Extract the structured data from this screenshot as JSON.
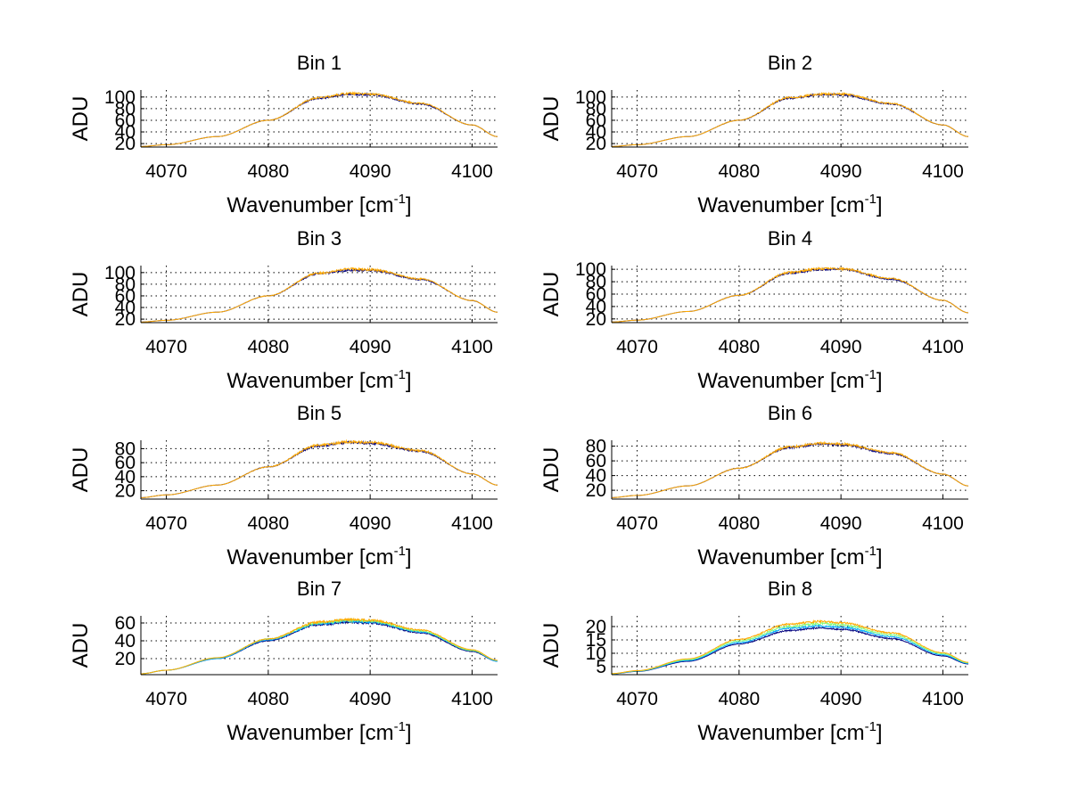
{
  "figure": {
    "background": "#ffffff"
  },
  "chart_data": [
    {
      "type": "line",
      "title": "Bin 1",
      "xlabel": "Wavenumber [cm",
      "xlabel_sup": "-1",
      "xlabel_close": "]",
      "ylabel": "ADU",
      "xlim": [
        4067.5,
        4102.5
      ],
      "ylim": [
        14,
        112
      ],
      "xticks": [
        4070,
        4080,
        4090,
        4100
      ],
      "yticks": [
        20,
        40,
        60,
        80,
        100
      ],
      "grid": true,
      "series": [
        {
          "color": "#00007f",
          "values": [
            [
              4067.5,
              15
            ],
            [
              4070,
              18
            ],
            [
              4075,
              32
            ],
            [
              4080,
              60
            ],
            [
              4085,
              98
            ],
            [
              4088,
              105
            ],
            [
              4090,
              104
            ],
            [
              4095,
              88
            ],
            [
              4100,
              52
            ],
            [
              4102.5,
              32
            ]
          ]
        },
        {
          "color": "#ffaa00",
          "values": [
            [
              4067.5,
              15
            ],
            [
              4070,
              18
            ],
            [
              4075,
              32
            ],
            [
              4080,
              60
            ],
            [
              4085,
              99
            ],
            [
              4088,
              106
            ],
            [
              4090,
              105
            ],
            [
              4095,
              89
            ],
            [
              4100,
              52
            ],
            [
              4102.5,
              32
            ]
          ]
        }
      ]
    },
    {
      "type": "line",
      "title": "Bin 2",
      "xlabel": "Wavenumber [cm",
      "xlabel_sup": "-1",
      "xlabel_close": "]",
      "ylabel": "ADU",
      "xlim": [
        4067.5,
        4102.5
      ],
      "ylim": [
        14,
        112
      ],
      "xticks": [
        4070,
        4080,
        4090,
        4100
      ],
      "yticks": [
        20,
        40,
        60,
        80,
        100
      ],
      "grid": true,
      "series": [
        {
          "color": "#00007f",
          "values": [
            [
              4067.5,
              15
            ],
            [
              4070,
              18
            ],
            [
              4075,
              32
            ],
            [
              4080,
              60
            ],
            [
              4085,
              98
            ],
            [
              4088,
              104
            ],
            [
              4090,
              104
            ],
            [
              4095,
              88
            ],
            [
              4100,
              52
            ],
            [
              4102.5,
              32
            ]
          ]
        },
        {
          "color": "#ffaa00",
          "values": [
            [
              4067.5,
              15
            ],
            [
              4070,
              18
            ],
            [
              4075,
              32
            ],
            [
              4080,
              60
            ],
            [
              4085,
              99
            ],
            [
              4088,
              105
            ],
            [
              4090,
              105
            ],
            [
              4095,
              89
            ],
            [
              4100,
              52
            ],
            [
              4102.5,
              32
            ]
          ]
        }
      ]
    },
    {
      "type": "line",
      "title": "Bin 3",
      "xlabel": "Wavenumber [cm",
      "xlabel_sup": "-1",
      "xlabel_close": "]",
      "ylabel": "ADU",
      "xlim": [
        4067.5,
        4102.5
      ],
      "ylim": [
        14,
        112
      ],
      "xticks": [
        4070,
        4080,
        4090,
        4100
      ],
      "yticks": [
        20,
        40,
        60,
        80,
        100
      ],
      "grid": true,
      "series": [
        {
          "color": "#00007f",
          "values": [
            [
              4067.5,
              15
            ],
            [
              4070,
              18
            ],
            [
              4075,
              32
            ],
            [
              4080,
              60
            ],
            [
              4085,
              98
            ],
            [
              4088,
              104
            ],
            [
              4090,
              104
            ],
            [
              4095,
              88
            ],
            [
              4100,
              52
            ],
            [
              4102.5,
              32
            ]
          ]
        },
        {
          "color": "#ffaa00",
          "values": [
            [
              4067.5,
              15
            ],
            [
              4070,
              18
            ],
            [
              4075,
              32
            ],
            [
              4080,
              60
            ],
            [
              4085,
              99
            ],
            [
              4088,
              106
            ],
            [
              4090,
              105
            ],
            [
              4095,
              89
            ],
            [
              4100,
              52
            ],
            [
              4102.5,
              32
            ]
          ]
        }
      ]
    },
    {
      "type": "line",
      "title": "Bin 4",
      "xlabel": "Wavenumber [cm",
      "xlabel_sup": "-1",
      "xlabel_close": "]",
      "ylabel": "ADU",
      "xlim": [
        4067.5,
        4102.5
      ],
      "ylim": [
        14,
        106
      ],
      "xticks": [
        4070,
        4080,
        4090,
        4100
      ],
      "yticks": [
        20,
        40,
        60,
        80,
        100
      ],
      "grid": true,
      "series": [
        {
          "color": "#00007f",
          "values": [
            [
              4067.5,
              15
            ],
            [
              4070,
              18
            ],
            [
              4075,
              32
            ],
            [
              4080,
              58
            ],
            [
              4085,
              94
            ],
            [
              4088,
              100
            ],
            [
              4090,
              100
            ],
            [
              4095,
              84
            ],
            [
              4100,
              50
            ],
            [
              4102.5,
              30
            ]
          ]
        },
        {
          "color": "#ffaa00",
          "values": [
            [
              4067.5,
              15
            ],
            [
              4070,
              18
            ],
            [
              4075,
              32
            ],
            [
              4080,
              58
            ],
            [
              4085,
              95
            ],
            [
              4088,
              101
            ],
            [
              4090,
              101
            ],
            [
              4095,
              85
            ],
            [
              4100,
              50
            ],
            [
              4102.5,
              30
            ]
          ]
        }
      ]
    },
    {
      "type": "line",
      "title": "Bin 5",
      "xlabel": "Wavenumber [cm",
      "xlabel_sup": "-1",
      "xlabel_close": "]",
      "ylabel": "ADU",
      "xlim": [
        4067.5,
        4102.5
      ],
      "ylim": [
        8,
        92
      ],
      "xticks": [
        4070,
        4080,
        4090,
        4100
      ],
      "yticks": [
        20,
        40,
        60,
        80
      ],
      "grid": true,
      "series": [
        {
          "color": "#00007f",
          "values": [
            [
              4067.5,
              10
            ],
            [
              4070,
              14
            ],
            [
              4075,
              28
            ],
            [
              4080,
              54
            ],
            [
              4085,
              84
            ],
            [
              4088,
              89
            ],
            [
              4090,
              88
            ],
            [
              4095,
              76
            ],
            [
              4100,
              44
            ],
            [
              4102.5,
              28
            ]
          ]
        },
        {
          "color": "#ffaa00",
          "values": [
            [
              4067.5,
              10
            ],
            [
              4070,
              14
            ],
            [
              4075,
              28
            ],
            [
              4080,
              54
            ],
            [
              4085,
              85
            ],
            [
              4088,
              90
            ],
            [
              4090,
              89
            ],
            [
              4095,
              77
            ],
            [
              4100,
              44
            ],
            [
              4102.5,
              28
            ]
          ]
        }
      ]
    },
    {
      "type": "line",
      "title": "Bin 6",
      "xlabel": "Wavenumber [cm",
      "xlabel_sup": "-1",
      "xlabel_close": "]",
      "ylabel": "ADU",
      "xlim": [
        4067.5,
        4102.5
      ],
      "ylim": [
        8,
        88
      ],
      "xticks": [
        4070,
        4080,
        4090,
        4100
      ],
      "yticks": [
        20,
        40,
        60,
        80
      ],
      "grid": true,
      "series": [
        {
          "color": "#00007f",
          "values": [
            [
              4067.5,
              10
            ],
            [
              4070,
              13
            ],
            [
              4075,
              26
            ],
            [
              4080,
              50
            ],
            [
              4085,
              78
            ],
            [
              4088,
              83
            ],
            [
              4090,
              82
            ],
            [
              4095,
              70
            ],
            [
              4100,
              42
            ],
            [
              4102.5,
              26
            ]
          ]
        },
        {
          "color": "#ffaa00",
          "values": [
            [
              4067.5,
              10
            ],
            [
              4070,
              13
            ],
            [
              4075,
              26
            ],
            [
              4080,
              50
            ],
            [
              4085,
              79
            ],
            [
              4088,
              84
            ],
            [
              4090,
              83
            ],
            [
              4095,
              71
            ],
            [
              4100,
              42
            ],
            [
              4102.5,
              26
            ]
          ]
        }
      ]
    },
    {
      "type": "line",
      "title": "Bin 7",
      "xlabel": "Wavenumber [cm",
      "xlabel_sup": "-1",
      "xlabel_close": "]",
      "ylabel": "ADU",
      "xlim": [
        4067.5,
        4102.5
      ],
      "ylim": [
        2,
        68
      ],
      "xticks": [
        4070,
        4080,
        4090,
        4100
      ],
      "yticks": [
        20,
        40,
        60
      ],
      "grid": true,
      "series": [
        {
          "color": "#00007f",
          "values": [
            [
              4067.5,
              3
            ],
            [
              4070,
              7
            ],
            [
              4075,
              20
            ],
            [
              4080,
              40
            ],
            [
              4085,
              58
            ],
            [
              4088,
              61
            ],
            [
              4090,
              60
            ],
            [
              4095,
              49
            ],
            [
              4100,
              28
            ],
            [
              4102.5,
              17
            ]
          ]
        },
        {
          "color": "#00aaff",
          "values": [
            [
              4067.5,
              3
            ],
            [
              4070,
              7
            ],
            [
              4075,
              20
            ],
            [
              4080,
              41
            ],
            [
              4085,
              59
            ],
            [
              4088,
              62
            ],
            [
              4090,
              61
            ],
            [
              4095,
              50
            ],
            [
              4100,
              29
            ],
            [
              4102.5,
              17
            ]
          ]
        },
        {
          "color": "#7fff7f",
          "values": [
            [
              4067.5,
              3
            ],
            [
              4070,
              7
            ],
            [
              4075,
              21
            ],
            [
              4080,
              42
            ],
            [
              4085,
              60
            ],
            [
              4088,
              63
            ],
            [
              4090,
              62
            ],
            [
              4095,
              51
            ],
            [
              4100,
              29
            ],
            [
              4102.5,
              18
            ]
          ]
        },
        {
          "color": "#ffaa00",
          "values": [
            [
              4067.5,
              3
            ],
            [
              4070,
              7
            ],
            [
              4075,
              21
            ],
            [
              4080,
              42
            ],
            [
              4085,
              61
            ],
            [
              4088,
              64
            ],
            [
              4090,
              63
            ],
            [
              4095,
              52
            ],
            [
              4100,
              30
            ],
            [
              4102.5,
              18
            ]
          ]
        }
      ]
    },
    {
      "type": "line",
      "title": "Bin 8",
      "xlabel": "Wavenumber [cm",
      "xlabel_sup": "-1",
      "xlabel_close": "]",
      "ylabel": "ADU",
      "xlim": [
        4067.5,
        4102.5
      ],
      "ylim": [
        2,
        24
      ],
      "xticks": [
        4070,
        4080,
        4090,
        4100
      ],
      "yticks": [
        5,
        10,
        15,
        20
      ],
      "grid": true,
      "series": [
        {
          "color": "#00007f",
          "values": [
            [
              4067.5,
              2.3
            ],
            [
              4070,
              3.2
            ],
            [
              4075,
              7
            ],
            [
              4080,
              13.5
            ],
            [
              4085,
              18.5
            ],
            [
              4088,
              19.5
            ],
            [
              4090,
              19
            ],
            [
              4095,
              15.5
            ],
            [
              4100,
              9
            ],
            [
              4102.5,
              6
            ]
          ]
        },
        {
          "color": "#00aaff",
          "values": [
            [
              4067.5,
              2.3
            ],
            [
              4070,
              3.3
            ],
            [
              4075,
              7.3
            ],
            [
              4080,
              14
            ],
            [
              4085,
              19.3
            ],
            [
              4088,
              20.3
            ],
            [
              4090,
              19.8
            ],
            [
              4095,
              16.2
            ],
            [
              4100,
              9.4
            ],
            [
              4102.5,
              6.2
            ]
          ]
        },
        {
          "color": "#7fff7f",
          "values": [
            [
              4067.5,
              2.4
            ],
            [
              4070,
              3.4
            ],
            [
              4075,
              7.6
            ],
            [
              4080,
              14.6
            ],
            [
              4085,
              20.1
            ],
            [
              4088,
              21.1
            ],
            [
              4090,
              20.6
            ],
            [
              4095,
              16.9
            ],
            [
              4100,
              9.8
            ],
            [
              4102.5,
              6.4
            ]
          ]
        },
        {
          "color": "#ffaa00",
          "values": [
            [
              4067.5,
              2.4
            ],
            [
              4070,
              3.5
            ],
            [
              4075,
              7.9
            ],
            [
              4080,
              15.2
            ],
            [
              4085,
              20.9
            ],
            [
              4088,
              21.9
            ],
            [
              4090,
              21.4
            ],
            [
              4095,
              17.6
            ],
            [
              4100,
              10.2
            ],
            [
              4102.5,
              6.6
            ]
          ]
        }
      ]
    }
  ]
}
